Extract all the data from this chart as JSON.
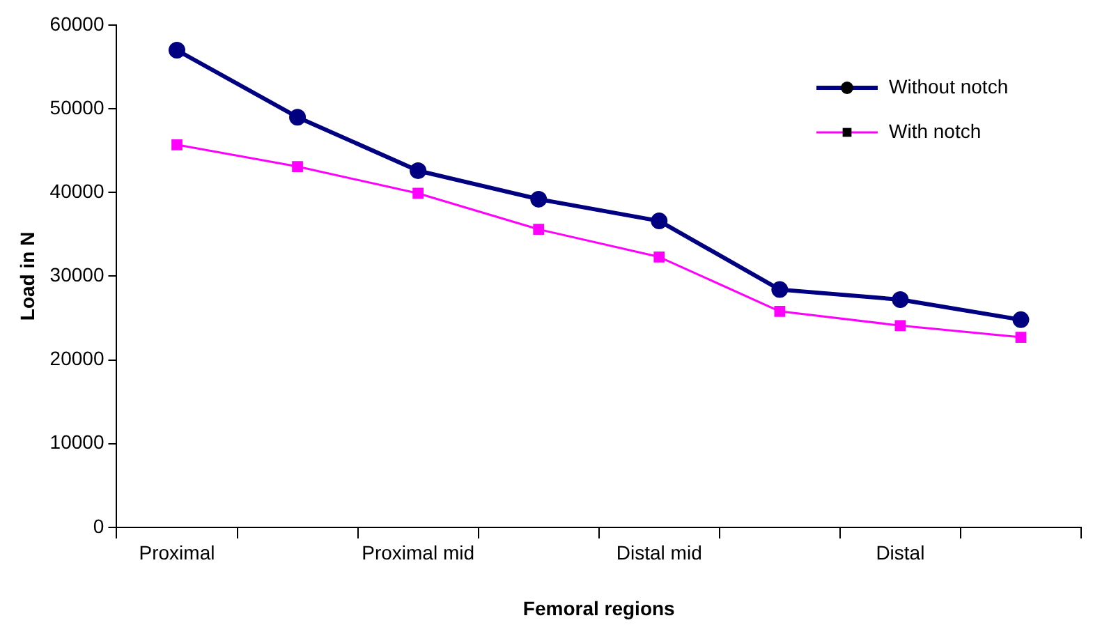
{
  "chart_data": {
    "type": "line",
    "xlabel": "Femoral regions",
    "ylabel": "Load in N",
    "categories": [
      "Proximal",
      null,
      "Proximal mid",
      null,
      "Distal mid",
      null,
      "Distal",
      null
    ],
    "series": [
      {
        "name": "Without notch",
        "color": "#000080",
        "marker": "circle",
        "values": [
          57000,
          49000,
          42600,
          39200,
          36600,
          28400,
          27200,
          24800
        ]
      },
      {
        "name": "With notch",
        "color": "#ff00ff",
        "marker": "square",
        "values": [
          45700,
          43100,
          39900,
          35600,
          32300,
          25800,
          24100,
          22700
        ]
      }
    ],
    "ylim": [
      0,
      60000
    ],
    "yticks": [
      0,
      10000,
      20000,
      30000,
      40000,
      50000,
      60000
    ],
    "grid": false,
    "legend": "top right",
    "line_style": "solid"
  }
}
